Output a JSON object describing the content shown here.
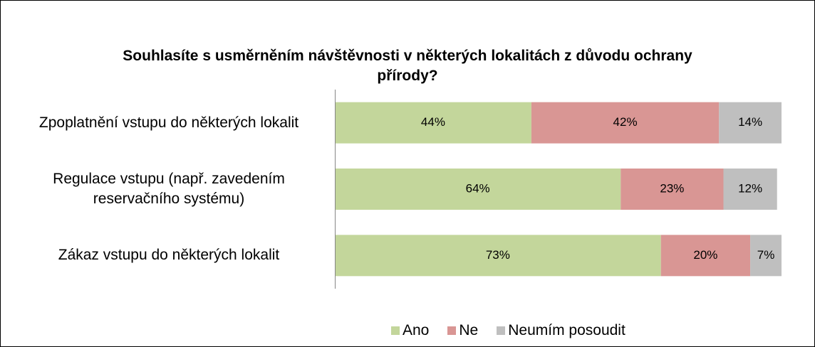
{
  "chart_data": {
    "type": "stacked-barh",
    "title": "Souhlasíte s usměrněním návštěvnosti v některých lokalitách z důvodu ochrany přírody?",
    "categories": [
      "Zpoplatnění vstupu do některých lokalit",
      "Regulace vstupu (např. zavedením reservačního systému)",
      "Zákaz vstupu do některých lokalit"
    ],
    "xlim": [
      0,
      100
    ],
    "series": [
      {
        "name": "Ano",
        "color": "#c3d69b",
        "values": [
          44,
          64,
          73
        ],
        "value_labels": [
          "44%",
          "64%",
          "73%"
        ]
      },
      {
        "name": "Ne",
        "color": "#d99694",
        "values": [
          42,
          23,
          20
        ],
        "value_labels": [
          "42%",
          "23%",
          "20%"
        ]
      },
      {
        "name": "Neumím posoudit",
        "color": "#bfbfbf",
        "values": [
          14,
          12,
          7
        ],
        "value_labels": [
          "14%",
          "12%",
          "7%"
        ]
      }
    ],
    "legend": "bottom"
  }
}
